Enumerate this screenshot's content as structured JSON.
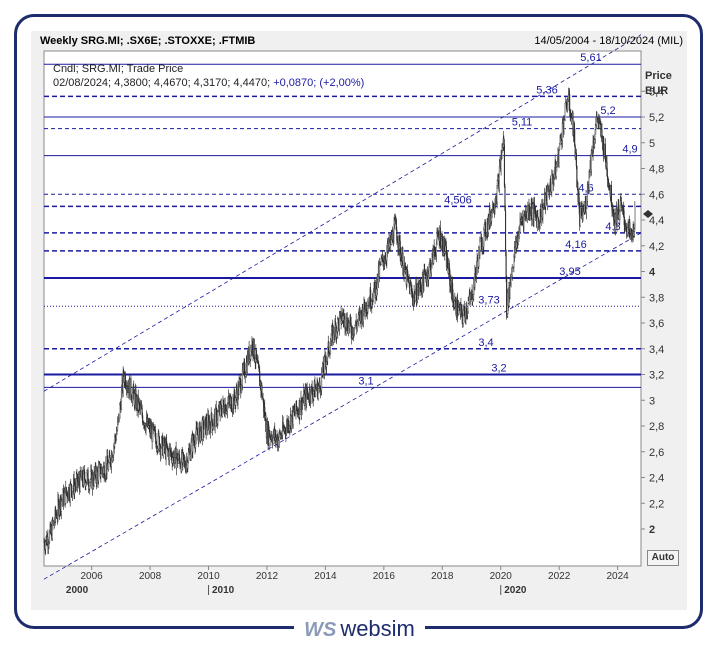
{
  "header": {
    "title": "Weekly SRG.MI; .SX6E; .STOXXE; .FTMIB",
    "date_range": "14/05/2004 - 18/10/2024 (MIL)"
  },
  "legend": {
    "line1": "Cndl; SRG.MI; Trade Price",
    "line2_ohlc": "02/08/2024; 4,3800; 4,4670; 4,3170; 4,4470;",
    "line2_change": "+0,0870; (+2,00%)"
  },
  "axis": {
    "y_unit_line1": "Price",
    "y_unit_line2": "EUR",
    "auto_label": "Auto"
  },
  "logo": {
    "mark": "WS",
    "text": "websim"
  },
  "colors": {
    "navy": "#1c2c6c",
    "level_line": "#1a1aa0",
    "candle": "#333333",
    "panel": "#f0f0f0"
  },
  "chart_data": {
    "type": "candlestick",
    "title": "Weekly SRG.MI; .SX6E; .STOXXE; .FTMIB",
    "ylabel": "Price EUR",
    "ylim": [
      1.8,
      5.8
    ],
    "xlim": [
      2004.37,
      2024.8
    ],
    "yticks": [
      "2",
      "2,2",
      "2,4",
      "2,6",
      "2,8",
      "3",
      "3,2",
      "3,4",
      "3,6",
      "3,8",
      "4",
      "4,2",
      "4,4",
      "4,6",
      "4,8",
      "5",
      "5,2",
      "5,4"
    ],
    "xticks": [
      "2006",
      "2008",
      "2010",
      "2012",
      "2014",
      "2016",
      "2018",
      "2020",
      "2022",
      "2024"
    ],
    "decade_labels": [
      "2000",
      "2010",
      "2020"
    ],
    "last_candle": {
      "date": "02/08/2024",
      "open": 4.38,
      "high": 4.467,
      "low": 4.317,
      "close": 4.447
    },
    "price_path": [
      [
        2004.37,
        1.9
      ],
      [
        2004.6,
        1.96
      ],
      [
        2004.9,
        2.2
      ],
      [
        2005.2,
        2.3
      ],
      [
        2005.5,
        2.35
      ],
      [
        2005.8,
        2.4
      ],
      [
        2006.0,
        2.38
      ],
      [
        2006.3,
        2.45
      ],
      [
        2006.6,
        2.5
      ],
      [
        2006.9,
        2.8
      ],
      [
        2007.1,
        3.2
      ],
      [
        2007.3,
        3.1
      ],
      [
        2007.6,
        2.95
      ],
      [
        2007.9,
        2.8
      ],
      [
        2008.2,
        2.7
      ],
      [
        2008.6,
        2.6
      ],
      [
        2008.9,
        2.55
      ],
      [
        2009.2,
        2.5
      ],
      [
        2009.5,
        2.7
      ],
      [
        2009.9,
        2.8
      ],
      [
        2010.2,
        2.85
      ],
      [
        2010.5,
        2.95
      ],
      [
        2010.9,
        3.0
      ],
      [
        2011.2,
        3.2
      ],
      [
        2011.5,
        3.45
      ],
      [
        2011.8,
        3.1
      ],
      [
        2012.0,
        2.75
      ],
      [
        2012.4,
        2.7
      ],
      [
        2012.8,
        2.85
      ],
      [
        2013.1,
        2.95
      ],
      [
        2013.4,
        3.05
      ],
      [
        2013.8,
        3.1
      ],
      [
        2014.0,
        3.3
      ],
      [
        2014.3,
        3.55
      ],
      [
        2014.6,
        3.65
      ],
      [
        2014.9,
        3.55
      ],
      [
        2015.1,
        3.6
      ],
      [
        2015.4,
        3.75
      ],
      [
        2015.7,
        3.85
      ],
      [
        2015.9,
        4.05
      ],
      [
        2016.2,
        4.2
      ],
      [
        2016.4,
        4.35
      ],
      [
        2016.7,
        4.0
      ],
      [
        2017.0,
        3.8
      ],
      [
        2017.3,
        3.9
      ],
      [
        2017.6,
        4.05
      ],
      [
        2017.9,
        4.3
      ],
      [
        2018.1,
        4.15
      ],
      [
        2018.4,
        3.75
      ],
      [
        2018.7,
        3.65
      ],
      [
        2019.0,
        3.8
      ],
      [
        2019.3,
        4.2
      ],
      [
        2019.6,
        4.4
      ],
      [
        2019.9,
        4.65
      ],
      [
        2020.1,
        5.05
      ],
      [
        2020.2,
        3.7
      ],
      [
        2020.4,
        4.05
      ],
      [
        2020.7,
        4.4
      ],
      [
        2021.0,
        4.5
      ],
      [
        2021.3,
        4.4
      ],
      [
        2021.6,
        4.6
      ],
      [
        2021.9,
        4.8
      ],
      [
        2022.1,
        5.1
      ],
      [
        2022.3,
        5.35
      ],
      [
        2022.5,
        5.1
      ],
      [
        2022.7,
        4.4
      ],
      [
        2022.9,
        4.5
      ],
      [
        2023.1,
        4.9
      ],
      [
        2023.3,
        5.2
      ],
      [
        2023.5,
        5.0
      ],
      [
        2023.7,
        4.7
      ],
      [
        2023.9,
        4.4
      ],
      [
        2024.1,
        4.5
      ],
      [
        2024.3,
        4.35
      ],
      [
        2024.5,
        4.25
      ],
      [
        2024.59,
        4.447
      ]
    ],
    "horizontal_levels": [
      {
        "label": "5,61",
        "value": 5.61,
        "style": "solid"
      },
      {
        "label": "5,36",
        "value": 5.36,
        "style": "dashed"
      },
      {
        "label": "5,2",
        "value": 5.2,
        "style": "solid"
      },
      {
        "label": "5,11",
        "value": 5.11,
        "style": "thin-dashed"
      },
      {
        "label": "4,9",
        "value": 4.9,
        "style": "solid"
      },
      {
        "label": "4,6",
        "value": 4.6,
        "style": "thin-dashed"
      },
      {
        "label": "4,506",
        "value": 4.506,
        "style": "dashed"
      },
      {
        "label": "4,3",
        "value": 4.3,
        "style": "dashed"
      },
      {
        "label": "4,16",
        "value": 4.16,
        "style": "dashed"
      },
      {
        "label": "3,95",
        "value": 3.95,
        "style": "thick"
      },
      {
        "label": "3,73",
        "value": 3.73,
        "style": "dotted"
      },
      {
        "label": "3,4",
        "value": 3.4,
        "style": "dashed"
      },
      {
        "label": "3,2",
        "value": 3.2,
        "style": "thick"
      },
      {
        "label": "3,1",
        "value": 3.1,
        "style": "solid"
      }
    ],
    "trend_channel": {
      "upper": [
        [
          2004.37,
          3.07
        ],
        [
          2024.8,
          5.84
        ]
      ],
      "lower": [
        [
          2004.37,
          1.61
        ],
        [
          2024.8,
          4.3
        ]
      ]
    }
  }
}
